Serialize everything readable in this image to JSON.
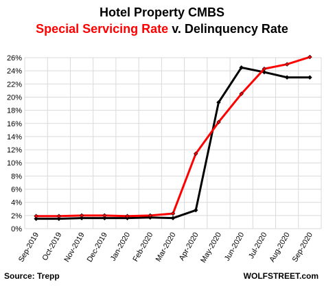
{
  "title": "Hotel Property CMBS",
  "subtitle_part1": "Special Servicing Rate",
  "subtitle_part2": "v. Delinquency Rate",
  "source": "Source: Trepp",
  "brand": "WOLFSTREET.com",
  "colors": {
    "special_servicing": "#ff0000",
    "delinquency": "#000000",
    "grid": "#d9d9d9"
  },
  "chart_data": {
    "type": "line",
    "title": "Hotel Property CMBS",
    "subtitle": "Special Servicing Rate v. Delinquency Rate",
    "x": [
      "Sep-2019",
      "Oct-2019",
      "Nov-2019",
      "Dec-2019",
      "Jan-2020",
      "Feb-2020",
      "Mar-2020",
      "Apr-2020",
      "May-2020",
      "Jun-2020",
      "Jul-2020",
      "Aug-2020",
      "Sep-2020"
    ],
    "y_ticks": [
      "0%",
      "2%",
      "4%",
      "6%",
      "8%",
      "10%",
      "12%",
      "14%",
      "16%",
      "18%",
      "20%",
      "22%",
      "24%",
      "26%"
    ],
    "ylim": [
      0,
      26
    ],
    "grid": true,
    "legend": "none",
    "series": [
      {
        "name": "Special Servicing Rate",
        "color": "#ff0000",
        "values": [
          1.9,
          1.9,
          2.0,
          2.0,
          1.9,
          2.0,
          2.3,
          11.4,
          16.2,
          20.5,
          24.3,
          25.0,
          26.1
        ]
      },
      {
        "name": "Delinquency Rate",
        "color": "#000000",
        "values": [
          1.5,
          1.5,
          1.6,
          1.6,
          1.6,
          1.7,
          1.6,
          2.8,
          19.2,
          24.5,
          23.8,
          23.0,
          23.0
        ]
      }
    ]
  }
}
